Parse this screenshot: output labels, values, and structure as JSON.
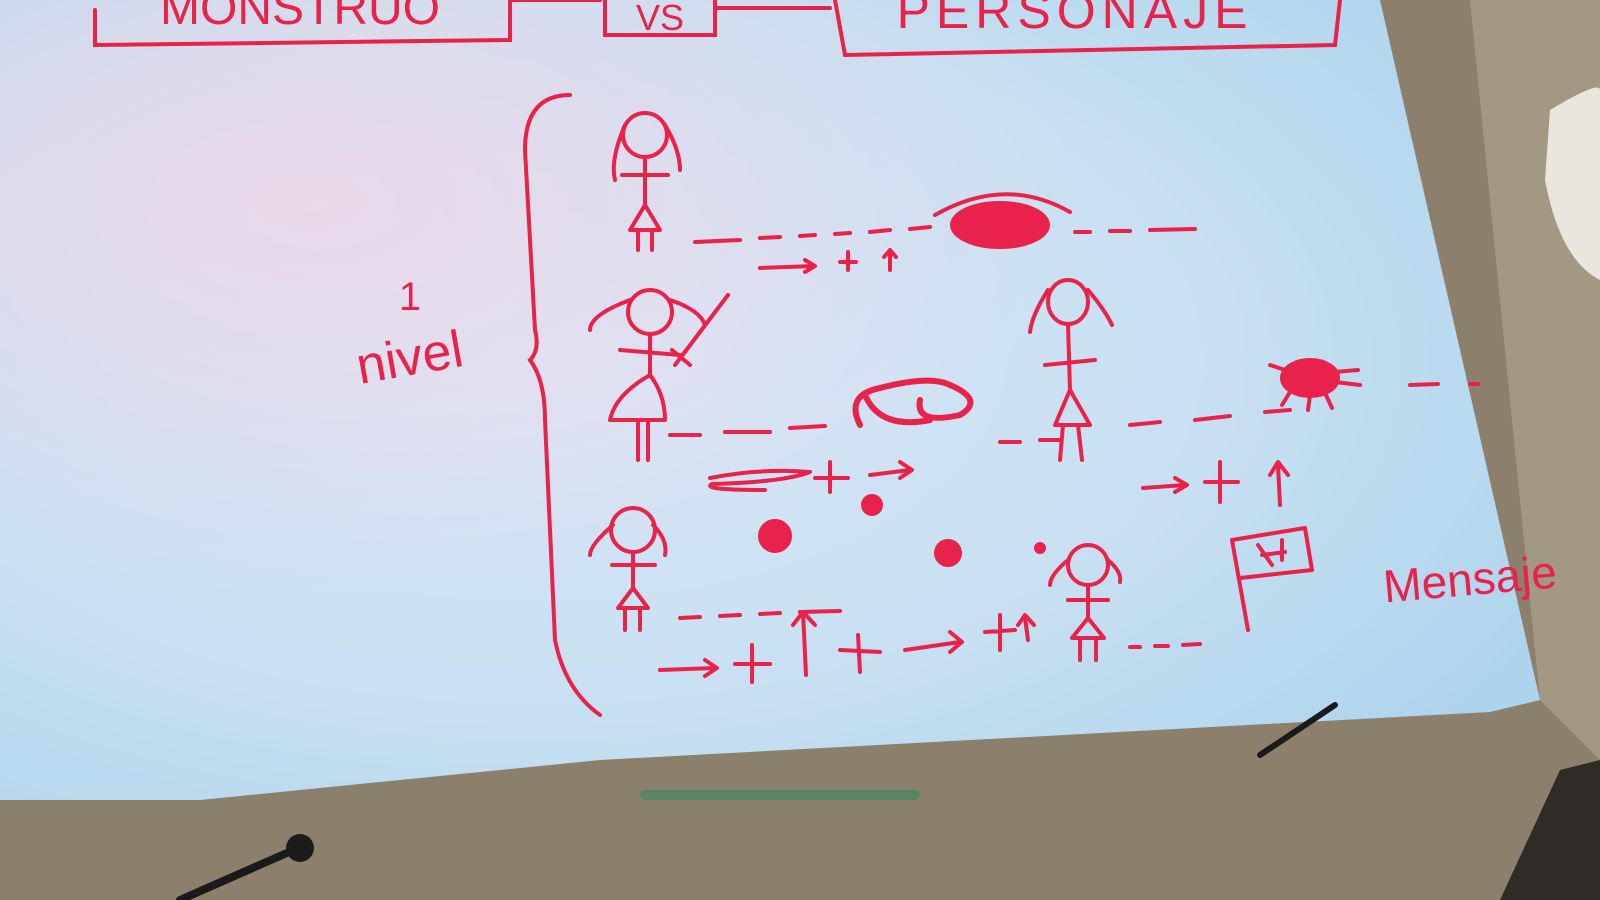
{
  "board": {
    "title_left": "MONSTRUO",
    "title_vs": "VS",
    "title_right": "PERSONAJE",
    "level_number": "1",
    "level_label": "nivel",
    "message_label": "Mensaje"
  },
  "colors": {
    "ink": "#e8224a",
    "board": "#cfe3f2",
    "frame": "#8a7e6c"
  }
}
